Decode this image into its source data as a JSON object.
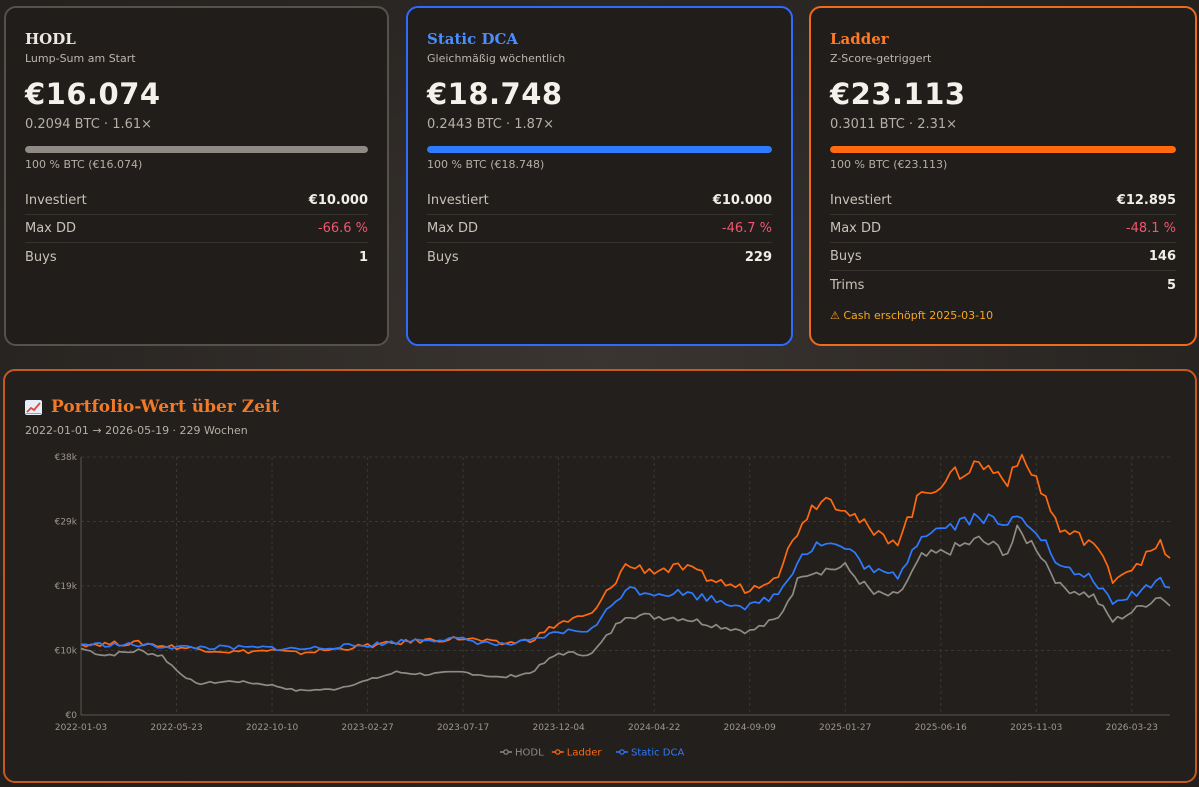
{
  "cards": {
    "hodl": {
      "title": "HODL",
      "subtitle": "Lump-Sum am Start",
      "value": "€16.074",
      "meta": "0.2094 BTC · 1.61×",
      "bar_caption": "100 % BTC (€16.074)",
      "bar_fraction": 1.0,
      "color": "#8f8a84",
      "stats": [
        {
          "label": "Investiert",
          "value": "€10.000",
          "neg": false
        },
        {
          "label": "Max DD",
          "value": "-66.6 %",
          "neg": true
        },
        {
          "label": "Buys",
          "value": "1",
          "neg": false
        }
      ]
    },
    "dca": {
      "title": "Static DCA",
      "subtitle": "Gleichmäßig wöchentlich",
      "value": "€18.748",
      "meta": "0.2443 BTC · 1.87×",
      "bar_caption": "100 % BTC (€18.748)",
      "bar_fraction": 1.0,
      "color": "#2f7bff",
      "stats": [
        {
          "label": "Investiert",
          "value": "€10.000",
          "neg": false
        },
        {
          "label": "Max DD",
          "value": "-46.7 %",
          "neg": true
        },
        {
          "label": "Buys",
          "value": "229",
          "neg": false
        }
      ]
    },
    "ladder": {
      "title": "Ladder",
      "subtitle": "Z-Score-getriggert",
      "value": "€23.113",
      "meta": "0.3011 BTC · 2.31×",
      "bar_caption": "100 % BTC (€23.113)",
      "bar_fraction": 1.0,
      "color": "#ff6a10",
      "stats": [
        {
          "label": "Investiert",
          "value": "€12.895",
          "neg": false
        },
        {
          "label": "Max DD",
          "value": "-48.1 %",
          "neg": true
        },
        {
          "label": "Buys",
          "value": "146",
          "neg": false
        },
        {
          "label": "Trims",
          "value": "5",
          "neg": false
        }
      ],
      "warning": "⚠ Cash erschöpft 2025-03-10"
    }
  },
  "chart_panel": {
    "title": "Portfolio-Wert über Zeit",
    "subtitle": "2022-01-01 → 2026-05-19 · 229 Wochen"
  },
  "chart_data": {
    "type": "line",
    "x_ticks": [
      "2022-01-03",
      "2022-05-23",
      "2022-10-10",
      "2023-02-27",
      "2023-07-17",
      "2023-12-04",
      "2024-04-22",
      "2024-09-09",
      "2025-01-27",
      "2025-06-16",
      "2025-11-03",
      "2026-03-23"
    ],
    "y_ticks": [
      "€0",
      "€10k",
      "€19k",
      "€29k",
      "€38k"
    ],
    "ylim": [
      0,
      38000
    ],
    "grid": true,
    "legend_position": "bottom-center",
    "series": [
      {
        "name": "HODL",
        "color": "#8f8a84",
        "points": [
          [
            "2022-01-03",
            9800
          ],
          [
            "2022-02-07",
            8800
          ],
          [
            "2022-03-28",
            9500
          ],
          [
            "2022-05-02",
            8700
          ],
          [
            "2022-05-23",
            6600
          ],
          [
            "2022-06-20",
            4600
          ],
          [
            "2022-08-15",
            5000
          ],
          [
            "2022-10-10",
            4400
          ],
          [
            "2022-11-14",
            3600
          ],
          [
            "2023-01-09",
            3800
          ],
          [
            "2023-02-27",
            5100
          ],
          [
            "2023-04-10",
            6300
          ],
          [
            "2023-05-22",
            6000
          ],
          [
            "2023-07-17",
            6300
          ],
          [
            "2023-09-11",
            5500
          ],
          [
            "2023-10-23",
            6200
          ],
          [
            "2023-12-04",
            9100
          ],
          [
            "2024-01-22",
            9000
          ],
          [
            "2024-03-11",
            14800
          ],
          [
            "2024-04-22",
            14500
          ],
          [
            "2024-06-03",
            14300
          ],
          [
            "2024-07-22",
            13200
          ],
          [
            "2024-09-09",
            12300
          ],
          [
            "2024-10-21",
            14200
          ],
          [
            "2024-11-25",
            21000
          ],
          [
            "2025-01-27",
            21800
          ],
          [
            "2025-03-10",
            17800
          ],
          [
            "2025-04-14",
            17500
          ],
          [
            "2025-05-19",
            23200
          ],
          [
            "2025-06-16",
            23800
          ],
          [
            "2025-08-11",
            25800
          ],
          [
            "2025-09-22",
            24000
          ],
          [
            "2025-10-06",
            27000
          ],
          [
            "2025-11-03",
            24800
          ],
          [
            "2025-12-08",
            18900
          ],
          [
            "2026-01-26",
            17500
          ],
          [
            "2026-02-23",
            13800
          ],
          [
            "2026-03-23",
            15200
          ],
          [
            "2026-05-04",
            17600
          ],
          [
            "2026-05-18",
            16074
          ]
        ]
      },
      {
        "name": "Ladder",
        "color": "#ff6a10",
        "points": [
          [
            "2022-01-03",
            10400
          ],
          [
            "2022-03-28",
            10600
          ],
          [
            "2022-05-23",
            10000
          ],
          [
            "2022-08-15",
            9300
          ],
          [
            "2022-10-10",
            9500
          ],
          [
            "2022-11-14",
            9100
          ],
          [
            "2023-02-27",
            10200
          ],
          [
            "2023-05-22",
            11000
          ],
          [
            "2023-07-17",
            11300
          ],
          [
            "2023-09-11",
            10500
          ],
          [
            "2023-10-23",
            11000
          ],
          [
            "2023-12-04",
            13500
          ],
          [
            "2024-01-22",
            14800
          ],
          [
            "2024-03-11",
            22000
          ],
          [
            "2024-04-22",
            21300
          ],
          [
            "2024-06-03",
            21700
          ],
          [
            "2024-07-22",
            19700
          ],
          [
            "2024-09-09",
            18400
          ],
          [
            "2024-10-21",
            21000
          ],
          [
            "2024-11-25",
            28700
          ],
          [
            "2024-12-23",
            32200
          ],
          [
            "2025-01-27",
            30800
          ],
          [
            "2025-03-10",
            26500
          ],
          [
            "2025-04-14",
            25800
          ],
          [
            "2025-05-19",
            32700
          ],
          [
            "2025-06-16",
            34200
          ],
          [
            "2025-08-11",
            37100
          ],
          [
            "2025-09-22",
            34800
          ],
          [
            "2025-10-06",
            37800
          ],
          [
            "2025-11-03",
            34900
          ],
          [
            "2025-12-08",
            27200
          ],
          [
            "2026-01-26",
            25400
          ],
          [
            "2026-02-23",
            20100
          ],
          [
            "2026-03-23",
            21800
          ],
          [
            "2026-05-04",
            25000
          ],
          [
            "2026-05-18",
            23113
          ]
        ]
      },
      {
        "name": "Static DCA",
        "color": "#2f7bff",
        "points": [
          [
            "2022-01-03",
            10400
          ],
          [
            "2022-03-28",
            10300
          ],
          [
            "2022-05-23",
            10000
          ],
          [
            "2022-08-15",
            9900
          ],
          [
            "2022-10-10",
            9900
          ],
          [
            "2022-11-14",
            9700
          ],
          [
            "2023-02-27",
            10300
          ],
          [
            "2023-05-22",
            11200
          ],
          [
            "2023-07-17",
            11100
          ],
          [
            "2023-09-11",
            10300
          ],
          [
            "2023-10-23",
            10800
          ],
          [
            "2023-12-04",
            12200
          ],
          [
            "2024-01-22",
            12600
          ],
          [
            "2024-03-11",
            18600
          ],
          [
            "2024-04-22",
            18000
          ],
          [
            "2024-06-03",
            18000
          ],
          [
            "2024-07-22",
            17000
          ],
          [
            "2024-09-09",
            15900
          ],
          [
            "2024-10-21",
            17900
          ],
          [
            "2024-11-25",
            23800
          ],
          [
            "2024-12-23",
            25400
          ],
          [
            "2025-01-27",
            24600
          ],
          [
            "2025-03-10",
            21000
          ],
          [
            "2025-04-14",
            20500
          ],
          [
            "2025-05-19",
            26800
          ],
          [
            "2025-06-16",
            27500
          ],
          [
            "2025-08-11",
            29400
          ],
          [
            "2025-09-22",
            27600
          ],
          [
            "2025-10-06",
            30000
          ],
          [
            "2025-11-03",
            27500
          ],
          [
            "2025-12-08",
            21600
          ],
          [
            "2026-01-26",
            20100
          ],
          [
            "2026-02-23",
            16200
          ],
          [
            "2026-03-23",
            17700
          ],
          [
            "2026-05-04",
            20000
          ],
          [
            "2026-05-18",
            18748
          ]
        ]
      }
    ]
  }
}
